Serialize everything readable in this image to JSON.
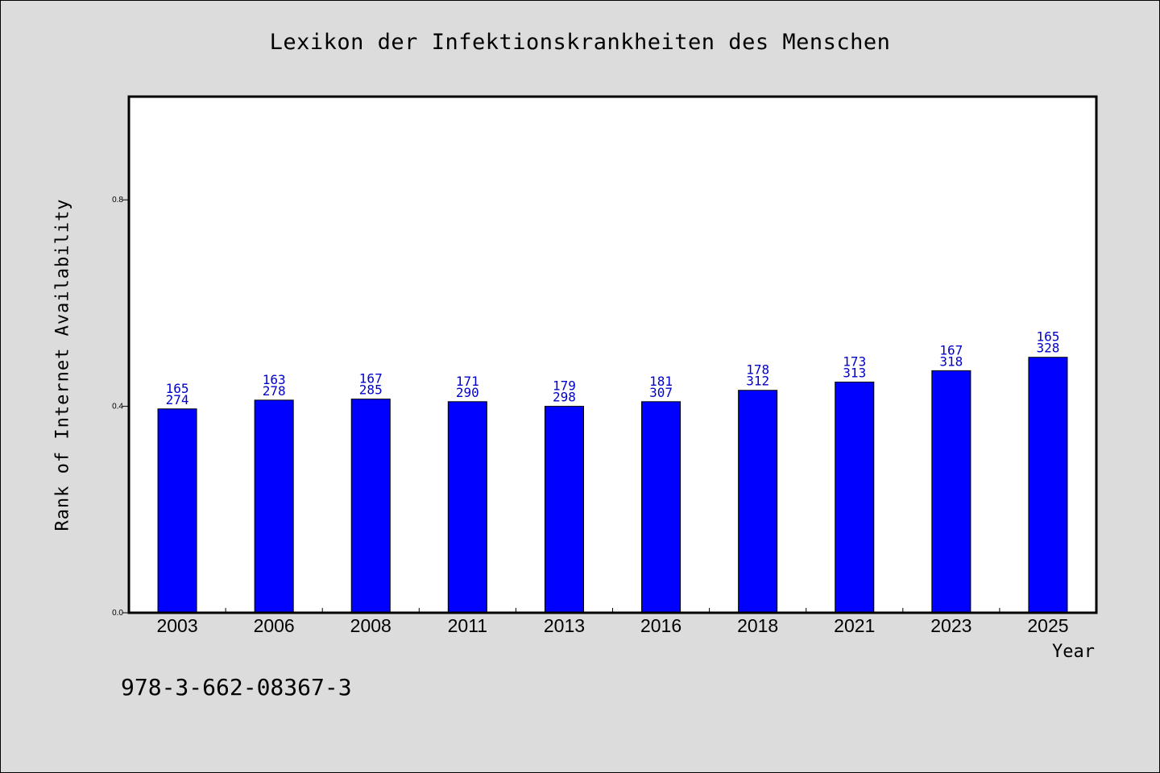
{
  "chart_data": {
    "type": "bar",
    "title": "Lexikon der Infektionskrankheiten des Menschen",
    "xlabel": "Year",
    "ylabel": "Rank of Internet Availability",
    "categories": [
      "2003",
      "2006",
      "2008",
      "2011",
      "2013",
      "2016",
      "2018",
      "2021",
      "2023",
      "2025"
    ],
    "values": [
      0.395,
      0.412,
      0.414,
      0.409,
      0.4,
      0.409,
      0.431,
      0.447,
      0.469,
      0.495
    ],
    "label_top": [
      "165",
      "163",
      "167",
      "171",
      "179",
      "181",
      "178",
      "173",
      "167",
      "165"
    ],
    "label_bottom": [
      "274",
      "278",
      "285",
      "290",
      "298",
      "307",
      "312",
      "313",
      "318",
      "328"
    ],
    "yticks": [
      "0.0",
      "0.4",
      "0.8"
    ],
    "ylim": [
      0,
      1.0
    ],
    "bar_color": "#0000ff",
    "label_color": "#0000cc",
    "grid": false,
    "legend": "none"
  },
  "footnote": "978-3-662-08367-3"
}
